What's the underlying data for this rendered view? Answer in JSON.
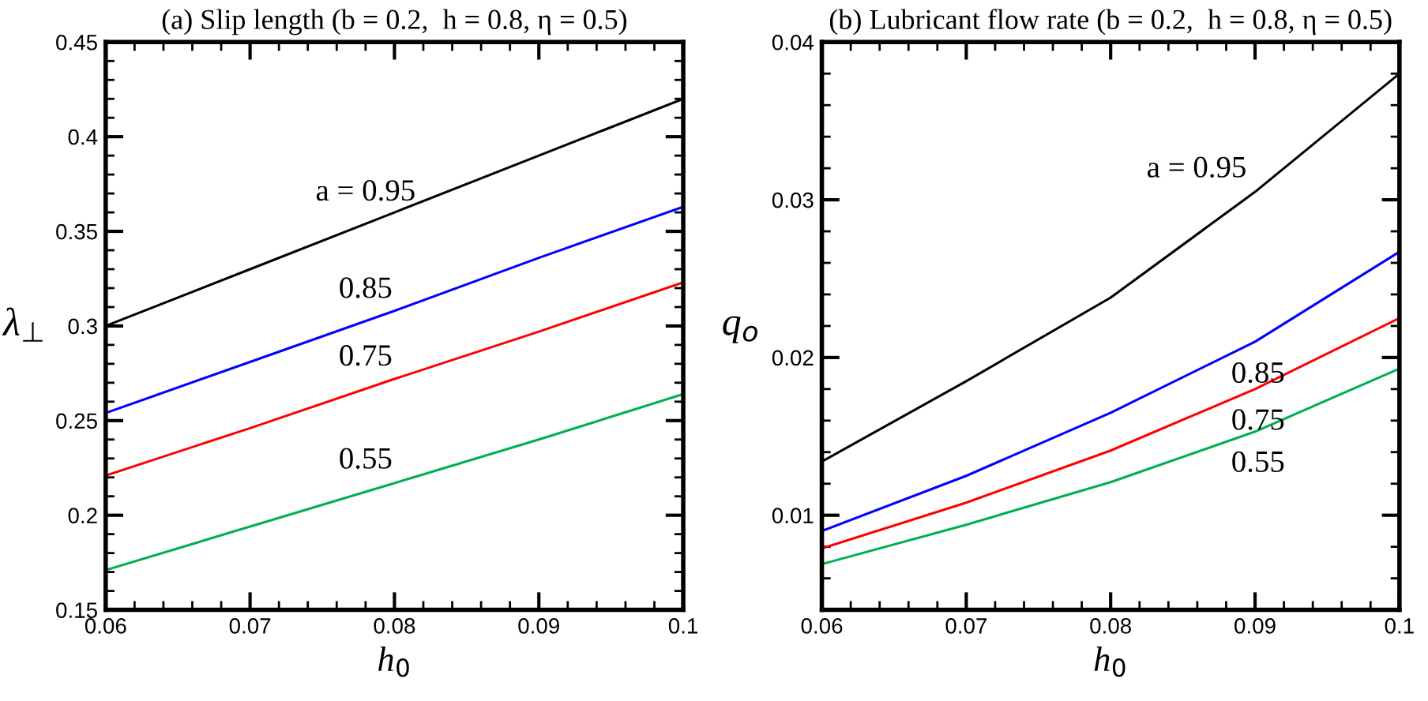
{
  "chart_data": [
    {
      "type": "line",
      "title": "(a) Slip length (b = 0.2,  h = 0.8, η = 0.5)",
      "xlabel": "h$_{0}$",
      "ylabel": "λ$_{⊥}$",
      "x": [
        0.06,
        0.07,
        0.08,
        0.09,
        0.1
      ],
      "series": [
        {
          "name": "a = 0.95",
          "color": "#000000",
          "values": [
            0.3,
            0.33,
            0.36,
            0.39,
            0.42
          ]
        },
        {
          "name": "0.85",
          "color": "#0000ff",
          "values": [
            0.254,
            0.281,
            0.308,
            0.336,
            0.363
          ]
        },
        {
          "name": "0.75",
          "color": "#ff0000",
          "values": [
            0.221,
            0.246,
            0.272,
            0.297,
            0.323
          ]
        },
        {
          "name": "0.55",
          "color": "#00b050",
          "values": [
            0.171,
            0.194,
            0.217,
            0.24,
            0.264
          ]
        }
      ],
      "xlim": [
        0.06,
        0.1
      ],
      "xticks": [
        0.06,
        0.07,
        0.08,
        0.09,
        0.1
      ],
      "ylim": [
        0.15,
        0.45
      ],
      "yticks": [
        0.15,
        0.2,
        0.25,
        0.3,
        0.35,
        0.4,
        0.45
      ]
    },
    {
      "type": "line",
      "title": "(b) Lubricant flow rate (b = 0.2,  h = 0.8, η = 0.5)",
      "xlabel": "h$_{0}$",
      "ylabel": "q$_{o}$",
      "x": [
        0.06,
        0.07,
        0.08,
        0.09,
        0.1
      ],
      "series": [
        {
          "name": "a = 0.95",
          "color": "#000000",
          "values": [
            0.0134,
            0.0185,
            0.0238,
            0.0305,
            0.038
          ]
        },
        {
          "name": "0.85",
          "color": "#0000ff",
          "values": [
            0.009,
            0.0125,
            0.0165,
            0.021,
            0.0267
          ]
        },
        {
          "name": "0.75",
          "color": "#ff0000",
          "values": [
            0.0079,
            0.0108,
            0.0141,
            0.018,
            0.0225
          ]
        },
        {
          "name": "0.55",
          "color": "#00b050",
          "values": [
            0.0069,
            0.0094,
            0.0121,
            0.0153,
            0.0193
          ]
        }
      ],
      "xlim": [
        0.06,
        0.1
      ],
      "xticks": [
        0.06,
        0.07,
        0.08,
        0.09,
        0.1
      ],
      "ylim": [
        0.004,
        0.04
      ],
      "yticks": [
        0.01,
        0.02,
        0.03,
        0.04
      ]
    }
  ]
}
